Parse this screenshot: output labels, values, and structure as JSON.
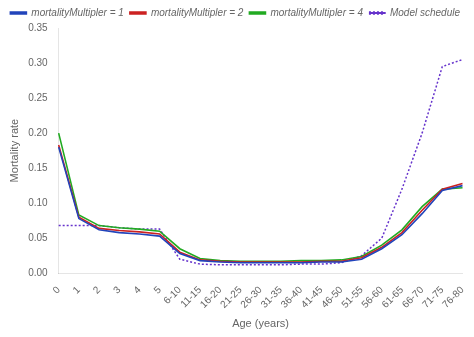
{
  "chart_data": {
    "type": "line",
    "xlabel": "Age (years)",
    "ylabel": "Mortality rate",
    "categories": [
      "0",
      "1",
      "2",
      "3",
      "4",
      "5",
      "6-10",
      "11-15",
      "16-20",
      "21-25",
      "26-30",
      "31-35",
      "36-40",
      "41-45",
      "46-50",
      "51-55",
      "56-60",
      "61-65",
      "66-70",
      "71-75",
      "76-80"
    ],
    "series": [
      {
        "name": "mortalityMultipler = 1",
        "color": "#2244bb",
        "line_style": "solid",
        "values": [
          0.18,
          0.078,
          0.062,
          0.058,
          0.056,
          0.053,
          0.028,
          0.018,
          0.016,
          0.015,
          0.015,
          0.015,
          0.015,
          0.016,
          0.016,
          0.02,
          0.035,
          0.055,
          0.085,
          0.118,
          0.125
        ]
      },
      {
        "name": "mortalityMultipler = 2",
        "color": "#cc2222",
        "line_style": "solid",
        "values": [
          0.183,
          0.08,
          0.064,
          0.061,
          0.059,
          0.056,
          0.03,
          0.019,
          0.017,
          0.016,
          0.016,
          0.016,
          0.016,
          0.017,
          0.017,
          0.022,
          0.037,
          0.058,
          0.09,
          0.12,
          0.128
        ]
      },
      {
        "name": "mortalityMultipler = 4",
        "color": "#22aa22",
        "line_style": "solid",
        "values": [
          0.2,
          0.083,
          0.068,
          0.065,
          0.063,
          0.06,
          0.035,
          0.021,
          0.018,
          0.017,
          0.017,
          0.017,
          0.018,
          0.018,
          0.019,
          0.024,
          0.04,
          0.062,
          0.095,
          0.12,
          0.122
        ]
      },
      {
        "name": "Model schedule",
        "color": "#6633cc",
        "line_style": "dotted",
        "values": [
          0.068,
          0.068,
          0.068,
          0.065,
          0.063,
          0.063,
          0.02,
          0.013,
          0.012,
          0.012,
          0.012,
          0.012,
          0.013,
          0.013,
          0.015,
          0.025,
          0.05,
          0.12,
          0.2,
          0.295,
          0.305
        ]
      }
    ],
    "ylim": [
      0.0,
      0.35
    ],
    "yticks": [
      {
        "value": 0,
        "label": "0.00"
      },
      {
        "value": 0.05,
        "label": "0.05"
      },
      {
        "value": 0.1,
        "label": "0.10"
      },
      {
        "value": 0.15,
        "label": "0.15"
      },
      {
        "value": 0.2,
        "label": "0.20"
      },
      {
        "value": 0.25,
        "label": "0.25"
      },
      {
        "value": 0.3,
        "label": "0.30"
      },
      {
        "value": 0.35,
        "label": "0.35"
      }
    ],
    "grid": false,
    "legend": "upper right"
  }
}
